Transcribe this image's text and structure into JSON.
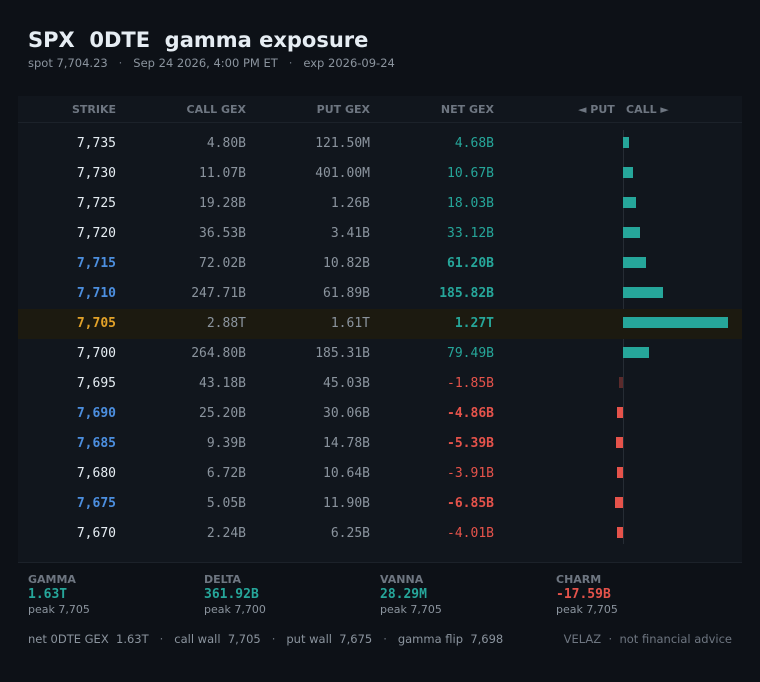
{
  "header": {
    "title": "SPX  0DTE  gamma exposure",
    "spot_label": "spot 7,704.23",
    "timestamp": "Sep 24 2026, 4:00 PM ET",
    "expiry": "exp 2026-09-24",
    "separator": "·"
  },
  "table": {
    "columns": {
      "strike": "STRIKE",
      "call": "CALL GEX",
      "put": "PUT GEX",
      "net": "NET GEX",
      "put_dir": "◄ PUT",
      "call_dir": "CALL ►"
    },
    "rows": [
      {
        "strike": "7,735",
        "call": "4.80B",
        "put": "121.50M",
        "net": "4.68B",
        "net_value": 4.68,
        "sign": "pos",
        "highlight": "none",
        "bold": false
      },
      {
        "strike": "7,730",
        "call": "11.07B",
        "put": "401.00M",
        "net": "10.67B",
        "net_value": 10.67,
        "sign": "pos",
        "highlight": "none",
        "bold": false
      },
      {
        "strike": "7,725",
        "call": "19.28B",
        "put": "1.26B",
        "net": "18.03B",
        "net_value": 18.03,
        "sign": "pos",
        "highlight": "none",
        "bold": false
      },
      {
        "strike": "7,720",
        "call": "36.53B",
        "put": "3.41B",
        "net": "33.12B",
        "net_value": 33.12,
        "sign": "pos",
        "highlight": "none",
        "bold": false
      },
      {
        "strike": "7,715",
        "call": "72.02B",
        "put": "10.82B",
        "net": "61.20B",
        "net_value": 61.2,
        "sign": "pos",
        "highlight": "blue",
        "bold": true
      },
      {
        "strike": "7,710",
        "call": "247.71B",
        "put": "61.89B",
        "net": "185.82B",
        "net_value": 185.82,
        "sign": "pos",
        "highlight": "blue",
        "bold": true
      },
      {
        "strike": "7,705",
        "call": "2.88T",
        "put": "1.61T",
        "net": "1.27T",
        "net_value": 1270,
        "sign": "pos",
        "highlight": "spot",
        "bold": true
      },
      {
        "strike": "7,700",
        "call": "264.80B",
        "put": "185.31B",
        "net": "79.49B",
        "net_value": 79.49,
        "sign": "pos",
        "highlight": "none",
        "bold": false
      },
      {
        "strike": "7,695",
        "call": "43.18B",
        "put": "45.03B",
        "net": "-1.85B",
        "net_value": -1.85,
        "sign": "neg",
        "highlight": "none",
        "bold": false
      },
      {
        "strike": "7,690",
        "call": "25.20B",
        "put": "30.06B",
        "net": "-4.86B",
        "net_value": -4.86,
        "sign": "neg",
        "highlight": "blue",
        "bold": true
      },
      {
        "strike": "7,685",
        "call": "9.39B",
        "put": "14.78B",
        "net": "-5.39B",
        "net_value": -5.39,
        "sign": "neg",
        "highlight": "blue",
        "bold": true
      },
      {
        "strike": "7,680",
        "call": "6.72B",
        "put": "10.64B",
        "net": "-3.91B",
        "net_value": -3.91,
        "sign": "neg",
        "highlight": "none",
        "bold": false
      },
      {
        "strike": "7,675",
        "call": "5.05B",
        "put": "11.90B",
        "net": "-6.85B",
        "net_value": -6.85,
        "sign": "neg",
        "highlight": "blue",
        "bold": true
      },
      {
        "strike": "7,670",
        "call": "2.24B",
        "put": "6.25B",
        "net": "-4.01B",
        "net_value": -4.01,
        "sign": "neg",
        "highlight": "none",
        "bold": false
      }
    ]
  },
  "stats": [
    {
      "label": "GAMMA",
      "value": "1.63T",
      "peak": "peak 7,705",
      "sign": "pos"
    },
    {
      "label": "DELTA",
      "value": "361.92B",
      "peak": "peak 7,700",
      "sign": "pos"
    },
    {
      "label": "VANNA",
      "value": "28.29M",
      "peak": "peak 7,705",
      "sign": "pos"
    },
    {
      "label": "CHARM",
      "value": "-17.59B",
      "peak": "peak 7,705",
      "sign": "neg"
    }
  ],
  "footer": {
    "net_label": "net 0DTE GEX",
    "net_value": "1.63T",
    "call_wall_label": "call wall",
    "call_wall_value": "7,705",
    "put_wall_label": "put wall",
    "put_wall_value": "7,675",
    "flip_label": "gamma flip",
    "flip_value": "7,698",
    "brand": "VELAZ",
    "disclaimer": "not financial advice"
  },
  "colors": {
    "positive": "#26a69a",
    "negative": "#e5534b",
    "strike_highlight": "#4c8fe0",
    "spot_strike": "#e3a228",
    "background": "#0d1117"
  }
}
